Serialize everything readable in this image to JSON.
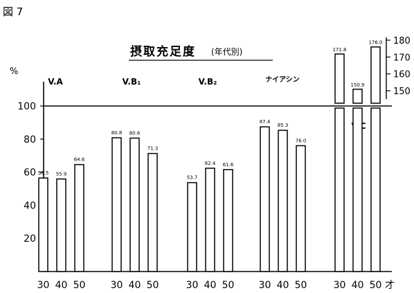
{
  "figure_label": "図 7",
  "chart_data": {
    "type": "bar",
    "title": "摂取充足度",
    "subtitle": "(年代別)",
    "ylabel": "%",
    "xlabel": "才",
    "ylim": [
      0,
      115
    ],
    "yticks": [
      20,
      40,
      60,
      80,
      100
    ],
    "grid": false,
    "reference_line": 100,
    "groups": [
      {
        "label": "V.A",
        "categories": [
          "30",
          "40",
          "50"
        ],
        "values": [
          56.5,
          55.9,
          64.6
        ],
        "value_labels": [
          "56.5",
          "55.9",
          "64.6"
        ]
      },
      {
        "label": "V.B₁",
        "categories": [
          "30",
          "40",
          "50"
        ],
        "values": [
          80.8,
          80.6,
          71.3
        ],
        "value_labels": [
          "80.8",
          "80.6",
          "71.3"
        ]
      },
      {
        "label": "V.B₂",
        "categories": [
          "30",
          "40",
          "50"
        ],
        "values": [
          53.7,
          62.4,
          61.6
        ],
        "value_labels": [
          "53.7",
          "62.4",
          "61.6"
        ]
      },
      {
        "label": "ナイアシン",
        "categories": [
          "30",
          "40",
          "50"
        ],
        "values": [
          87.4,
          85.3,
          76.0
        ],
        "value_labels": [
          "87.4",
          "85.3",
          "76.0"
        ]
      },
      {
        "label": "V.C",
        "categories": [
          "30",
          "40",
          "50"
        ],
        "values": [
          171.8,
          150.9,
          176.0
        ],
        "value_labels": [
          "171.8",
          "150.9",
          "176.0"
        ],
        "broken_axis": true
      }
    ],
    "secondary_axis": {
      "ticks": [
        150,
        160,
        170,
        180
      ],
      "range": [
        145,
        180
      ]
    }
  }
}
